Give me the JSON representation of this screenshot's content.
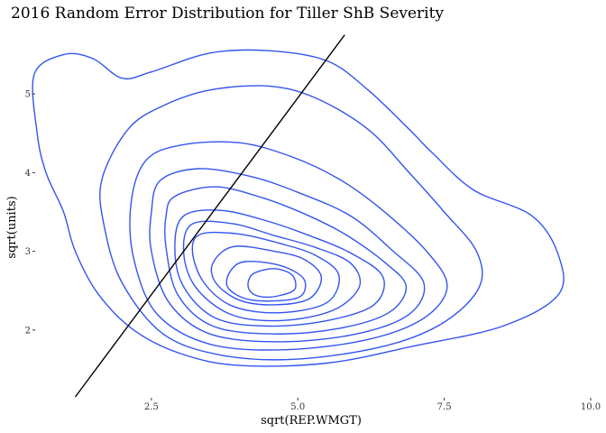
{
  "chart_data": {
    "type": "contour",
    "title": "2016 Random Error Distribution for Tiller ShB Severity",
    "xlabel": "sqrt(REP.WMGT)",
    "ylabel": "sqrt(units)",
    "xlim": [
      0.3,
      10.0
    ],
    "ylim": [
      1.15,
      5.85
    ],
    "x_ticks": [
      2.5,
      5.0,
      7.5,
      10.0
    ],
    "x_tick_labels": [
      "2.5",
      "5.0",
      "7.5",
      "10.0"
    ],
    "y_ticks": [
      2,
      3,
      4,
      5
    ],
    "y_tick_labels": [
      "2",
      "3",
      "4",
      "5"
    ],
    "grid": false,
    "contour_color": "#3355ee",
    "line_color": "#000000",
    "reference_line": {
      "x": [
        1.2,
        5.8
      ],
      "y": [
        1.15,
        5.75
      ]
    },
    "contours": [
      {
        "level": 1,
        "points": [
          [
            0.5,
            5.25
          ],
          [
            1.0,
            5.5
          ],
          [
            1.5,
            5.45
          ],
          [
            2.0,
            5.2
          ],
          [
            2.5,
            5.28
          ],
          [
            3.5,
            5.52
          ],
          [
            4.5,
            5.55
          ],
          [
            5.5,
            5.42
          ],
          [
            6.2,
            5.05
          ],
          [
            6.9,
            4.55
          ],
          [
            7.3,
            4.25
          ],
          [
            8.0,
            3.78
          ],
          [
            9.0,
            3.45
          ],
          [
            9.45,
            2.95
          ],
          [
            9.45,
            2.45
          ],
          [
            8.5,
            2.05
          ],
          [
            7.0,
            1.8
          ],
          [
            5.5,
            1.58
          ],
          [
            4.0,
            1.55
          ],
          [
            3.0,
            1.7
          ],
          [
            2.2,
            2.0
          ],
          [
            1.6,
            2.45
          ],
          [
            1.2,
            3.0
          ],
          [
            1.0,
            3.5
          ],
          [
            0.7,
            4.0
          ],
          [
            0.55,
            4.5
          ]
        ]
      },
      {
        "level": 2,
        "points": [
          [
            2.1,
            4.55
          ],
          [
            2.7,
            4.85
          ],
          [
            3.5,
            5.05
          ],
          [
            4.5,
            5.1
          ],
          [
            5.3,
            4.95
          ],
          [
            6.2,
            4.55
          ],
          [
            6.9,
            4.0
          ],
          [
            7.5,
            3.5
          ],
          [
            8.05,
            3.0
          ],
          [
            8.1,
            2.55
          ],
          [
            7.5,
            2.1
          ],
          [
            6.5,
            1.8
          ],
          [
            5.0,
            1.63
          ],
          [
            3.7,
            1.68
          ],
          [
            2.7,
            1.95
          ],
          [
            2.0,
            2.6
          ],
          [
            1.7,
            3.3
          ],
          [
            1.65,
            3.9
          ]
        ]
      },
      {
        "level": 3,
        "points": [
          [
            2.4,
            4.15
          ],
          [
            3.0,
            4.35
          ],
          [
            4.0,
            4.38
          ],
          [
            4.9,
            4.2
          ],
          [
            5.7,
            3.92
          ],
          [
            6.4,
            3.55
          ],
          [
            7.2,
            3.0
          ],
          [
            7.55,
            2.55
          ],
          [
            7.15,
            2.15
          ],
          [
            6.2,
            1.88
          ],
          [
            4.8,
            1.75
          ],
          [
            3.5,
            1.82
          ],
          [
            2.6,
            2.2
          ],
          [
            2.2,
            2.9
          ],
          [
            2.15,
            3.6
          ]
        ]
      },
      {
        "level": 4,
        "points": [
          [
            2.65,
            3.9
          ],
          [
            3.3,
            4.05
          ],
          [
            4.2,
            3.95
          ],
          [
            5.0,
            3.75
          ],
          [
            5.9,
            3.45
          ],
          [
            6.6,
            3.02
          ],
          [
            7.15,
            2.6
          ],
          [
            6.9,
            2.2
          ],
          [
            6.0,
            1.95
          ],
          [
            4.7,
            1.85
          ],
          [
            3.5,
            1.95
          ],
          [
            2.8,
            2.35
          ],
          [
            2.5,
            3.0
          ],
          [
            2.5,
            3.5
          ]
        ]
      },
      {
        "level": 5,
        "points": [
          [
            2.9,
            3.7
          ],
          [
            3.6,
            3.82
          ],
          [
            4.4,
            3.68
          ],
          [
            5.1,
            3.48
          ],
          [
            5.8,
            3.22
          ],
          [
            6.5,
            2.85
          ],
          [
            6.85,
            2.55
          ],
          [
            6.55,
            2.22
          ],
          [
            5.7,
            2.02
          ],
          [
            4.6,
            1.95
          ],
          [
            3.55,
            2.05
          ],
          [
            2.95,
            2.45
          ],
          [
            2.75,
            3.05
          ],
          [
            2.75,
            3.45
          ]
        ]
      },
      {
        "level": 6,
        "points": [
          [
            3.05,
            3.45
          ],
          [
            3.7,
            3.52
          ],
          [
            4.5,
            3.38
          ],
          [
            5.2,
            3.2
          ],
          [
            5.9,
            2.98
          ],
          [
            6.45,
            2.68
          ],
          [
            6.3,
            2.32
          ],
          [
            5.5,
            2.12
          ],
          [
            4.5,
            2.05
          ],
          [
            3.6,
            2.15
          ],
          [
            3.05,
            2.55
          ],
          [
            2.9,
            3.05
          ]
        ]
      },
      {
        "level": 7,
        "points": [
          [
            3.2,
            3.35
          ],
          [
            3.9,
            3.35
          ],
          [
            4.6,
            3.2
          ],
          [
            5.3,
            3.05
          ],
          [
            5.9,
            2.85
          ],
          [
            6.05,
            2.55
          ],
          [
            5.6,
            2.25
          ],
          [
            4.7,
            2.12
          ],
          [
            3.85,
            2.2
          ],
          [
            3.25,
            2.55
          ],
          [
            3.05,
            3.0
          ]
        ]
      },
      {
        "level": 8,
        "points": [
          [
            3.35,
            3.22
          ],
          [
            4.0,
            3.22
          ],
          [
            4.7,
            3.1
          ],
          [
            5.3,
            2.95
          ],
          [
            5.7,
            2.7
          ],
          [
            5.5,
            2.35
          ],
          [
            4.7,
            2.22
          ],
          [
            3.9,
            2.3
          ],
          [
            3.4,
            2.6
          ],
          [
            3.2,
            3.0
          ]
        ]
      },
      {
        "level": 9,
        "points": [
          [
            3.9,
            3.06
          ],
          [
            4.6,
            3.0
          ],
          [
            5.1,
            2.9
          ],
          [
            5.4,
            2.68
          ],
          [
            5.2,
            2.4
          ],
          [
            4.6,
            2.32
          ],
          [
            4.0,
            2.38
          ],
          [
            3.6,
            2.6
          ],
          [
            3.55,
            2.85
          ]
        ]
      },
      {
        "level": 10,
        "points": [
          [
            4.1,
            2.87
          ],
          [
            4.7,
            2.82
          ],
          [
            5.1,
            2.65
          ],
          [
            5.05,
            2.43
          ],
          [
            4.6,
            2.37
          ],
          [
            4.1,
            2.4
          ],
          [
            3.8,
            2.55
          ],
          [
            3.85,
            2.75
          ]
        ]
      },
      {
        "level": 11,
        "points": [
          [
            4.25,
            2.72
          ],
          [
            4.6,
            2.78
          ],
          [
            4.9,
            2.7
          ],
          [
            4.95,
            2.52
          ],
          [
            4.7,
            2.44
          ],
          [
            4.4,
            2.42
          ],
          [
            4.2,
            2.48
          ],
          [
            4.15,
            2.6
          ]
        ]
      }
    ]
  }
}
